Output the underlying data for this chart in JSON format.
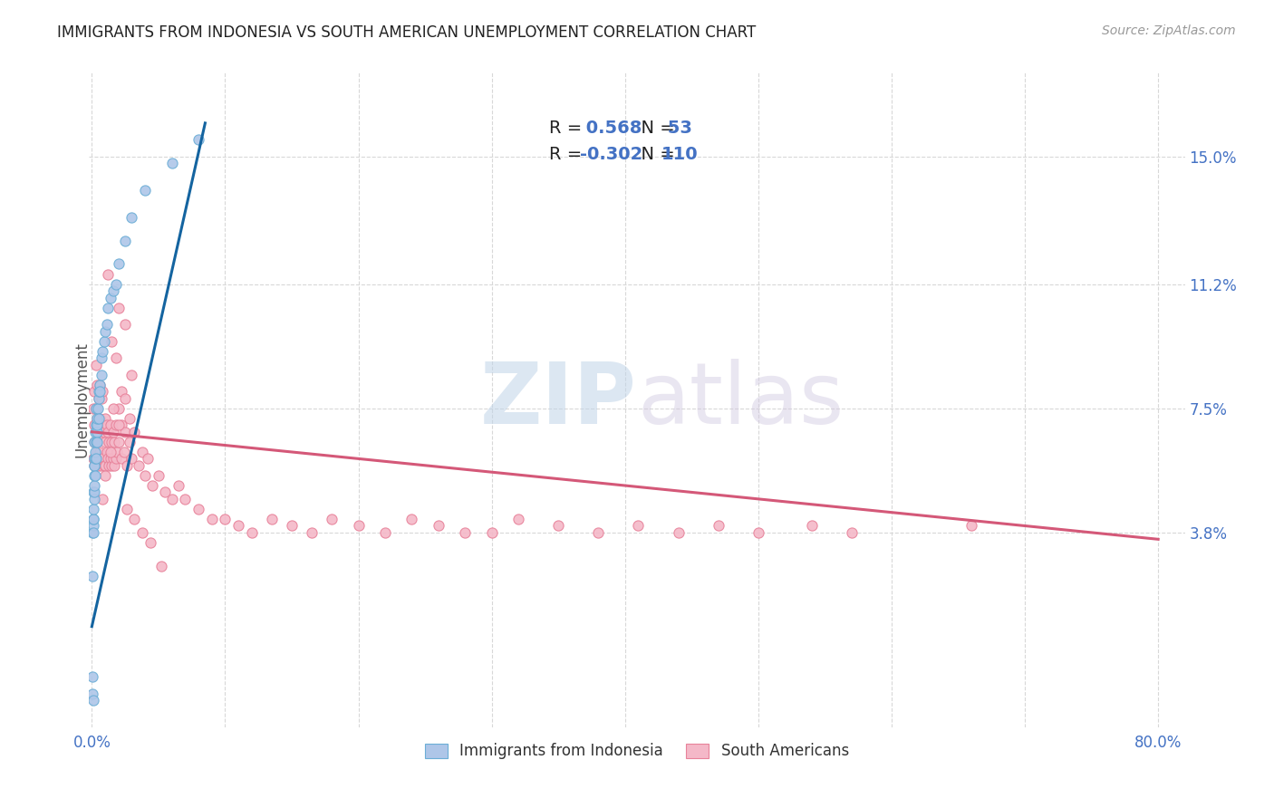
{
  "title": "IMMIGRANTS FROM INDONESIA VS SOUTH AMERICAN UNEMPLOYMENT CORRELATION CHART",
  "source": "Source: ZipAtlas.com",
  "ylabel": "Unemployment",
  "ytick_labels": [
    "3.8%",
    "7.5%",
    "11.2%",
    "15.0%"
  ],
  "ytick_values": [
    0.038,
    0.075,
    0.112,
    0.15
  ],
  "xlim": [
    -0.002,
    0.82
  ],
  "ylim": [
    -0.02,
    0.175
  ],
  "ylim_display": [
    0.0,
    0.175
  ],
  "legend_bottom": [
    {
      "label": "Immigrants from Indonesia",
      "facecolor": "#aec6e8",
      "edgecolor": "#6baed6"
    },
    {
      "label": "South Americans",
      "facecolor": "#f4b8c8",
      "edgecolor": "#e8829a"
    }
  ],
  "blue_scatter_fc": "#aec6e8",
  "blue_scatter_ec": "#6baed6",
  "pink_scatter_fc": "#f4b8c8",
  "pink_scatter_ec": "#e8829a",
  "blue_line_color": "#1464a0",
  "pink_line_color": "#d45878",
  "grid_color": "#d8d8d8",
  "background_color": "#ffffff",
  "tick_color": "#4472c4",
  "title_fontsize": 12,
  "source_fontsize": 10,
  "watermark_zip_color": "#c0d4e8",
  "watermark_atlas_color": "#d0c8e0",
  "blue_x": [
    0.0003,
    0.0005,
    0.0006,
    0.0007,
    0.0008,
    0.0009,
    0.001,
    0.001,
    0.0012,
    0.0013,
    0.0014,
    0.0015,
    0.0015,
    0.0016,
    0.0017,
    0.0018,
    0.002,
    0.002,
    0.002,
    0.0022,
    0.0023,
    0.0025,
    0.0026,
    0.003,
    0.003,
    0.003,
    0.003,
    0.0035,
    0.004,
    0.004,
    0.004,
    0.0045,
    0.005,
    0.005,
    0.005,
    0.006,
    0.006,
    0.007,
    0.007,
    0.008,
    0.009,
    0.01,
    0.011,
    0.012,
    0.014,
    0.016,
    0.018,
    0.02,
    0.025,
    0.03,
    0.04,
    0.06,
    0.08
  ],
  "blue_y": [
    -0.005,
    -0.01,
    0.025,
    0.038,
    -0.012,
    0.04,
    0.042,
    0.05,
    0.038,
    0.042,
    0.045,
    0.048,
    0.055,
    0.05,
    0.058,
    0.06,
    0.052,
    0.058,
    0.065,
    0.06,
    0.055,
    0.062,
    0.068,
    0.06,
    0.065,
    0.07,
    0.075,
    0.068,
    0.07,
    0.065,
    0.072,
    0.075,
    0.072,
    0.078,
    0.08,
    0.082,
    0.08,
    0.085,
    0.09,
    0.092,
    0.095,
    0.098,
    0.1,
    0.105,
    0.108,
    0.11,
    0.112,
    0.118,
    0.125,
    0.132,
    0.14,
    0.148,
    0.155
  ],
  "pink_x": [
    0.001,
    0.001,
    0.0015,
    0.002,
    0.002,
    0.002,
    0.003,
    0.003,
    0.003,
    0.004,
    0.004,
    0.004,
    0.005,
    0.005,
    0.005,
    0.006,
    0.006,
    0.006,
    0.007,
    0.007,
    0.007,
    0.008,
    0.008,
    0.008,
    0.009,
    0.009,
    0.01,
    0.01,
    0.01,
    0.011,
    0.011,
    0.012,
    0.012,
    0.013,
    0.013,
    0.014,
    0.014,
    0.015,
    0.015,
    0.016,
    0.016,
    0.017,
    0.017,
    0.018,
    0.018,
    0.019,
    0.02,
    0.02,
    0.022,
    0.022,
    0.024,
    0.025,
    0.026,
    0.028,
    0.03,
    0.032,
    0.035,
    0.038,
    0.04,
    0.042,
    0.045,
    0.05,
    0.055,
    0.06,
    0.065,
    0.07,
    0.08,
    0.09,
    0.1,
    0.11,
    0.12,
    0.135,
    0.15,
    0.165,
    0.18,
    0.2,
    0.22,
    0.24,
    0.26,
    0.28,
    0.3,
    0.32,
    0.35,
    0.38,
    0.41,
    0.44,
    0.47,
    0.5,
    0.54,
    0.57,
    0.015,
    0.02,
    0.025,
    0.03,
    0.018,
    0.022,
    0.025,
    0.028,
    0.012,
    0.016,
    0.008,
    0.01,
    0.014,
    0.02,
    0.026,
    0.032,
    0.038,
    0.044,
    0.052,
    0.66
  ],
  "pink_y": [
    0.06,
    0.075,
    0.065,
    0.058,
    0.07,
    0.08,
    0.065,
    0.075,
    0.088,
    0.062,
    0.072,
    0.082,
    0.058,
    0.068,
    0.078,
    0.062,
    0.072,
    0.082,
    0.058,
    0.068,
    0.078,
    0.06,
    0.07,
    0.08,
    0.058,
    0.068,
    0.058,
    0.065,
    0.072,
    0.062,
    0.07,
    0.06,
    0.068,
    0.058,
    0.065,
    0.06,
    0.07,
    0.058,
    0.065,
    0.06,
    0.068,
    0.058,
    0.065,
    0.06,
    0.07,
    0.062,
    0.065,
    0.075,
    0.06,
    0.07,
    0.062,
    0.068,
    0.058,
    0.065,
    0.06,
    0.068,
    0.058,
    0.062,
    0.055,
    0.06,
    0.052,
    0.055,
    0.05,
    0.048,
    0.052,
    0.048,
    0.045,
    0.042,
    0.042,
    0.04,
    0.038,
    0.042,
    0.04,
    0.038,
    0.042,
    0.04,
    0.038,
    0.042,
    0.04,
    0.038,
    0.038,
    0.042,
    0.04,
    0.038,
    0.04,
    0.038,
    0.04,
    0.038,
    0.04,
    0.038,
    0.095,
    0.105,
    0.1,
    0.085,
    0.09,
    0.08,
    0.078,
    0.072,
    0.115,
    0.075,
    0.048,
    0.055,
    0.062,
    0.07,
    0.045,
    0.042,
    0.038,
    0.035,
    0.028,
    0.04
  ],
  "blue_trendline_x": [
    0.0,
    0.085
  ],
  "blue_trendline_y": [
    0.01,
    0.16
  ],
  "pink_trendline_x": [
    0.0,
    0.8
  ],
  "pink_trendline_y": [
    0.068,
    0.036
  ]
}
